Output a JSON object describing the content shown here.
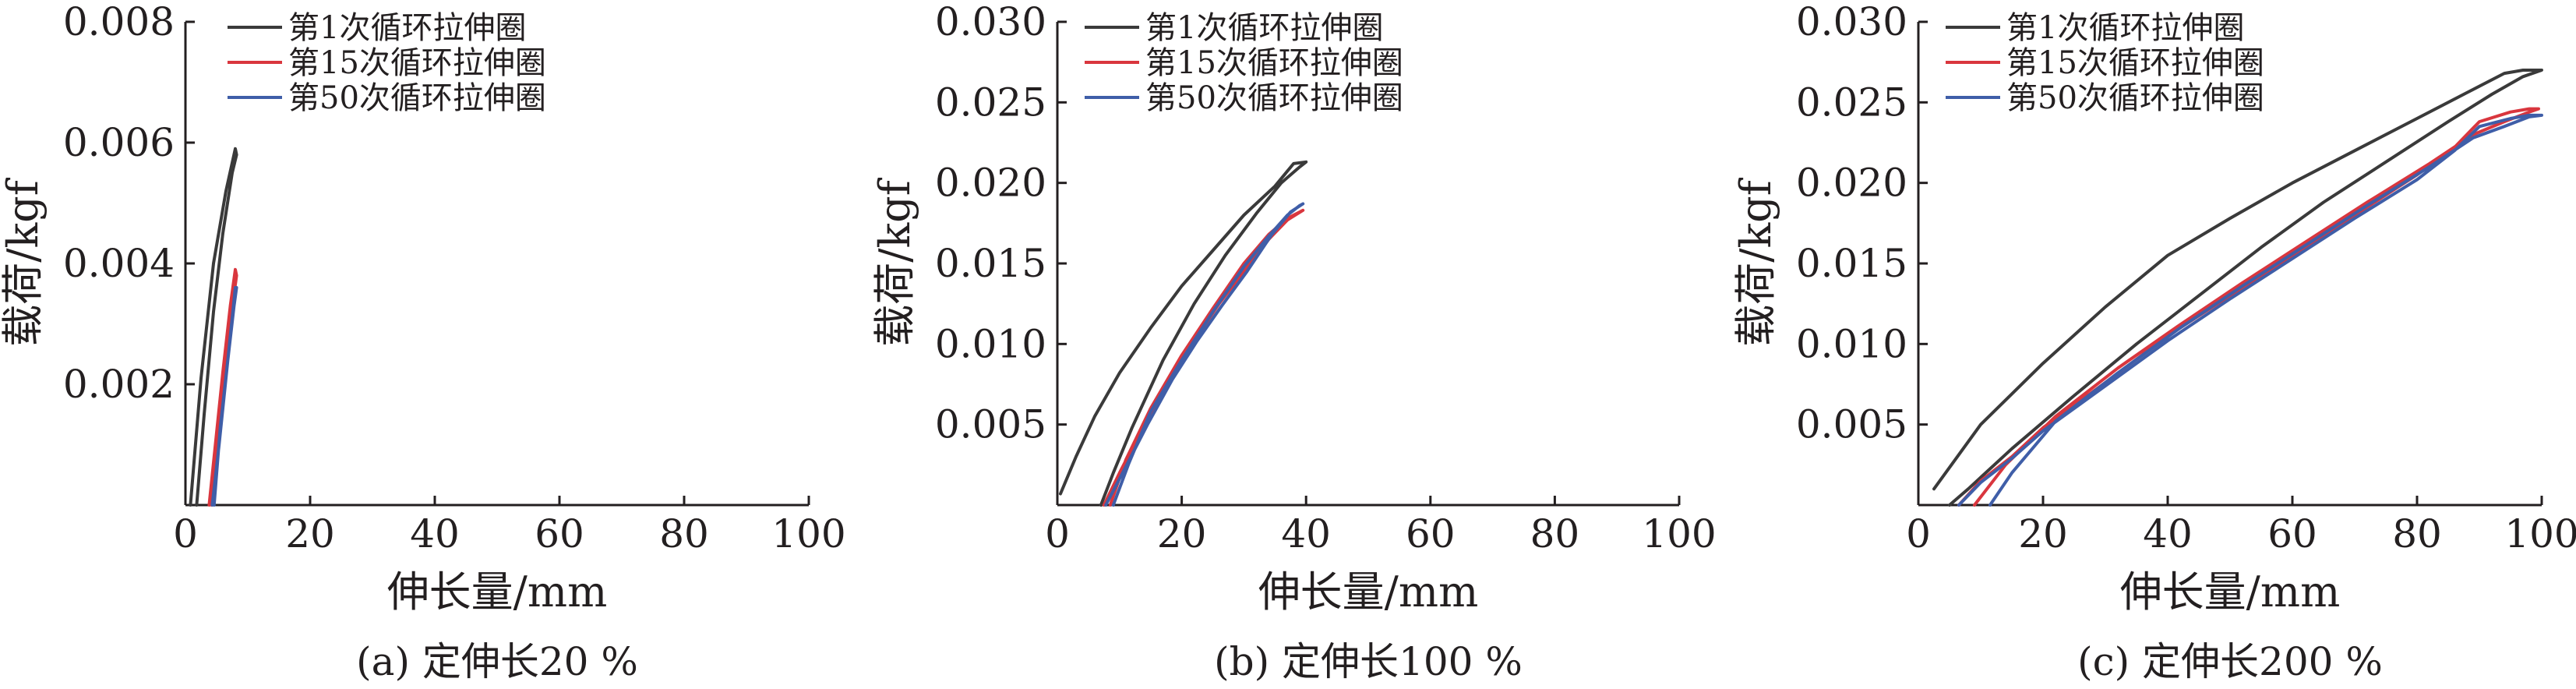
{
  "legend_items": [
    "第1次循环拉伸圈",
    "第15次循环拉伸圈",
    "第50次循环拉伸圈"
  ],
  "colors": {
    "cycle1": "#3a3a3a",
    "cycle15": "#d9363e",
    "cycle50": "#3f5ea8",
    "axis": "#231f20"
  },
  "chart_data": [
    {
      "type": "line",
      "caption": "(a) 定伸长20 %",
      "xlabel": "伸长量/mm",
      "ylabel": "载荷/kgf",
      "xlim": [
        0,
        100
      ],
      "ylim": [
        0,
        0.008
      ],
      "xticks": [
        0,
        20,
        40,
        60,
        80,
        100
      ],
      "xtick_labels": [
        "0",
        "20",
        "40",
        "60",
        "80",
        "100"
      ],
      "yticks": [
        0.002,
        0.004,
        0.006,
        0.008
      ],
      "ytick_labels": [
        "0.002",
        "0.004",
        "0.006",
        "0.008"
      ],
      "legend": "top-left",
      "grid": false,
      "series": [
        {
          "name": "第1次循环拉伸圈",
          "color_key": "cycle1",
          "x": [
            0.8,
            2.5,
            4.5,
            6.5,
            8.0,
            8.2,
            7.5,
            6.0,
            4.5,
            3.0,
            1.8
          ],
          "y": [
            0.0,
            0.0021,
            0.004,
            0.0052,
            0.0059,
            0.0058,
            0.0055,
            0.0045,
            0.0032,
            0.0015,
            0.0
          ]
        },
        {
          "name": "第15次循环拉伸圈",
          "color_key": "cycle15",
          "x": [
            3.8,
            5.0,
            6.0,
            7.2,
            8.0,
            8.2,
            7.8,
            6.5,
            5.3,
            4.2
          ],
          "y": [
            0.0,
            0.0012,
            0.0022,
            0.0033,
            0.0039,
            0.0038,
            0.0035,
            0.0025,
            0.0014,
            0.0
          ]
        },
        {
          "name": "第50次循环拉伸圈",
          "color_key": "cycle50",
          "x": [
            4.3,
            5.4,
            6.5,
            7.5,
            8.0,
            8.2,
            7.8,
            6.8,
            5.6,
            4.6
          ],
          "y": [
            0.0,
            0.001,
            0.0021,
            0.0031,
            0.0036,
            0.0036,
            0.0033,
            0.0024,
            0.0013,
            0.0
          ]
        }
      ]
    },
    {
      "type": "line",
      "caption": "(b) 定伸长100 %",
      "xlabel": "伸长量/mm",
      "ylabel": "载荷/kgf",
      "xlim": [
        0,
        100
      ],
      "ylim": [
        0,
        0.03
      ],
      "xticks": [
        0,
        20,
        40,
        60,
        80,
        100
      ],
      "xtick_labels": [
        "0",
        "20",
        "40",
        "60",
        "80",
        "100"
      ],
      "yticks": [
        0.005,
        0.01,
        0.015,
        0.02,
        0.025,
        0.03
      ],
      "ytick_labels": [
        "0.005",
        "0.010",
        "0.015",
        "0.020",
        "0.025",
        "0.030"
      ],
      "legend": "top-left",
      "grid": false,
      "series": [
        {
          "name": "第1次循环拉伸圈",
          "color_key": "cycle1",
          "x": [
            0.5,
            3,
            6,
            10,
            15,
            20,
            25,
            30,
            35,
            38,
            40,
            39,
            36,
            32,
            27,
            22,
            17,
            12,
            9,
            7
          ],
          "y": [
            0.0007,
            0.003,
            0.0055,
            0.0082,
            0.011,
            0.0136,
            0.0158,
            0.018,
            0.0198,
            0.0212,
            0.0213,
            0.021,
            0.02,
            0.0181,
            0.0155,
            0.0125,
            0.009,
            0.0048,
            0.002,
            0.0
          ]
        },
        {
          "name": "第15次循环拉伸圈",
          "color_key": "cycle15",
          "x": [
            7.5,
            10,
            14,
            18,
            22,
            26,
            30,
            34,
            37,
            39.5,
            39,
            37,
            34,
            30,
            25,
            20,
            15,
            11,
            8.5
          ],
          "y": [
            0.0,
            0.002,
            0.005,
            0.0078,
            0.0102,
            0.0125,
            0.0145,
            0.0165,
            0.0177,
            0.0183,
            0.0182,
            0.0178,
            0.0168,
            0.015,
            0.0122,
            0.0093,
            0.006,
            0.0028,
            0.0
          ]
        },
        {
          "name": "第50次循环拉伸圈",
          "color_key": "cycle50",
          "x": [
            7.8,
            10.5,
            14.5,
            18.5,
            22.5,
            26.5,
            30.5,
            34.5,
            37.5,
            39.5,
            39,
            37,
            34,
            30,
            25,
            20,
            15,
            11.5,
            9
          ],
          "y": [
            0.0,
            0.002,
            0.005,
            0.0078,
            0.0102,
            0.0124,
            0.0145,
            0.0168,
            0.0182,
            0.0187,
            0.0186,
            0.018,
            0.0167,
            0.0148,
            0.012,
            0.009,
            0.0058,
            0.0026,
            0.0
          ]
        }
      ]
    },
    {
      "type": "line",
      "caption": "(c) 定伸长200 %",
      "xlabel": "伸长量/mm",
      "ylabel": "载荷/kgf",
      "xlim": [
        0,
        100
      ],
      "ylim": [
        0,
        0.03
      ],
      "xticks": [
        0,
        20,
        40,
        60,
        80,
        100
      ],
      "xtick_labels": [
        "0",
        "20",
        "40",
        "60",
        "80",
        "100"
      ],
      "yticks": [
        0.005,
        0.01,
        0.015,
        0.02,
        0.025,
        0.03
      ],
      "ytick_labels": [
        "0.005",
        "0.010",
        "0.015",
        "0.020",
        "0.025",
        "0.030"
      ],
      "legend": "top-left",
      "grid": false,
      "series": [
        {
          "name": "第1次循环拉伸圈",
          "color_key": "cycle1",
          "x": [
            2.5,
            10,
            20,
            30,
            40,
            50,
            60,
            70,
            80,
            88,
            94,
            97,
            100,
            97,
            92,
            85,
            75,
            65,
            55,
            45,
            35,
            25,
            15,
            8,
            5
          ],
          "y": [
            0.001,
            0.005,
            0.0088,
            0.0123,
            0.0155,
            0.0178,
            0.02,
            0.022,
            0.024,
            0.0256,
            0.0268,
            0.027,
            0.027,
            0.0266,
            0.0255,
            0.0238,
            0.0213,
            0.0188,
            0.016,
            0.013,
            0.01,
            0.0068,
            0.0035,
            0.001,
            0.0
          ]
        },
        {
          "name": "第15次循环拉伸圈",
          "color_key": "cycle15",
          "x": [
            6.5,
            10,
            15,
            20,
            30,
            40,
            50,
            60,
            70,
            80,
            86,
            90,
            95,
            98,
            99.5,
            98,
            94,
            89,
            82,
            72,
            62,
            52,
            42,
            32,
            22,
            14,
            9
          ],
          "y": [
            0.0,
            0.0015,
            0.003,
            0.0048,
            0.0076,
            0.0105,
            0.013,
            0.0155,
            0.018,
            0.0205,
            0.0222,
            0.0238,
            0.0244,
            0.0246,
            0.0246,
            0.0244,
            0.0238,
            0.023,
            0.0212,
            0.0188,
            0.0163,
            0.0138,
            0.0112,
            0.0085,
            0.0055,
            0.0025,
            0.0
          ]
        },
        {
          "name": "第50次循环拉伸圈",
          "color_key": "cycle50",
          "x": [
            6.5,
            10,
            15,
            20,
            30,
            40,
            50,
            60,
            70,
            80,
            86,
            90,
            95,
            98,
            100,
            98,
            94,
            89,
            82,
            72,
            62,
            52,
            42,
            32,
            22,
            15,
            11.5
          ],
          "y": [
            0.0,
            0.0014,
            0.0029,
            0.0046,
            0.0074,
            0.0102,
            0.0128,
            0.0153,
            0.0178,
            0.0202,
            0.022,
            0.0235,
            0.024,
            0.0242,
            0.0242,
            0.0241,
            0.0235,
            0.0228,
            0.021,
            0.0186,
            0.0161,
            0.0136,
            0.011,
            0.0082,
            0.0052,
            0.002,
            0.0
          ]
        }
      ]
    }
  ]
}
